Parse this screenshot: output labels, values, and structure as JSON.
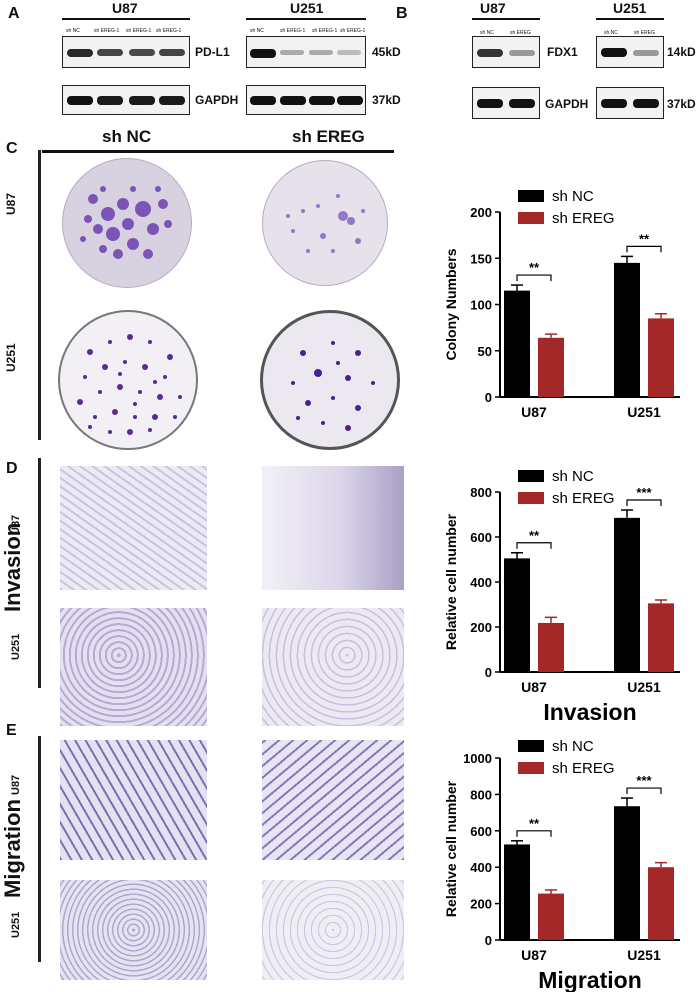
{
  "panels": {
    "A": "A",
    "B": "B",
    "C": "C",
    "D": "D",
    "E": "E"
  },
  "blotA": {
    "u87": "U87",
    "u251": "U251",
    "lanes": [
      "sh NC",
      "sh EREG-1",
      "sh EREG-1",
      "sh EREG-1"
    ],
    "pdl1": "PD-L1",
    "gapdh": "GAPDH",
    "kd45": "45kD",
    "kd37": "37kD"
  },
  "blotB": {
    "u87": "U87",
    "u251": "U251",
    "lanes": [
      "sh NC",
      "sh EREG"
    ],
    "fdx1": "FDX1",
    "gapdh": "GAPDH",
    "kd14": "14kD",
    "kd37": "37kD"
  },
  "sectionC": {
    "shnc": "sh NC",
    "shereg": "sh EREG",
    "row1": "U87",
    "row2": "U251"
  },
  "sectionD": {
    "side": "Invasion",
    "row1": "U87",
    "row2": "U251"
  },
  "sectionE": {
    "side": "Migration",
    "row1": "U87",
    "row2": "U251"
  },
  "colors": {
    "black": "#000000",
    "red": "#a52828",
    "stain": "#4a2a9a",
    "plate": "#cfc7d6"
  },
  "chart_data": [
    {
      "type": "bar",
      "title": "",
      "xlabel": "",
      "ylabel": "Colony Numbers",
      "ylim": [
        0,
        200
      ],
      "yticks": [
        0,
        50,
        100,
        150,
        200
      ],
      "categories": [
        "U87",
        "U251"
      ],
      "series": [
        {
          "name": "sh NC",
          "values": [
            115,
            145
          ],
          "errors": [
            6,
            7
          ],
          "color": "#000000"
        },
        {
          "name": "sh EREG",
          "values": [
            64,
            85
          ],
          "errors": [
            4,
            5
          ],
          "color": "#a52828"
        }
      ],
      "significance": [
        "**",
        "**"
      ],
      "legend": "top-left"
    },
    {
      "type": "bar",
      "title": "",
      "xlabel": "Invasion",
      "ylabel": "Relative cell number",
      "ylim": [
        0,
        800
      ],
      "yticks": [
        0,
        200,
        400,
        600,
        800
      ],
      "categories": [
        "U87",
        "U251"
      ],
      "series": [
        {
          "name": "sh NC",
          "values": [
            505,
            685
          ],
          "errors": [
            25,
            35
          ],
          "color": "#000000"
        },
        {
          "name": "sh EREG",
          "values": [
            218,
            305
          ],
          "errors": [
            25,
            15
          ],
          "color": "#a52828"
        }
      ],
      "significance": [
        "**",
        "***"
      ],
      "legend": "top-left"
    },
    {
      "type": "bar",
      "title": "",
      "xlabel": "Migration",
      "ylabel": "Relative cell number",
      "ylim": [
        0,
        1000
      ],
      "yticks": [
        0,
        200,
        400,
        600,
        800,
        1000
      ],
      "categories": [
        "U87",
        "U251"
      ],
      "series": [
        {
          "name": "sh NC",
          "values": [
            525,
            735
          ],
          "errors": [
            20,
            45
          ],
          "color": "#000000"
        },
        {
          "name": "sh EREG",
          "values": [
            255,
            400
          ],
          "errors": [
            20,
            25
          ],
          "color": "#a52828"
        }
      ],
      "significance": [
        "**",
        "***"
      ],
      "legend": "top-left"
    }
  ]
}
